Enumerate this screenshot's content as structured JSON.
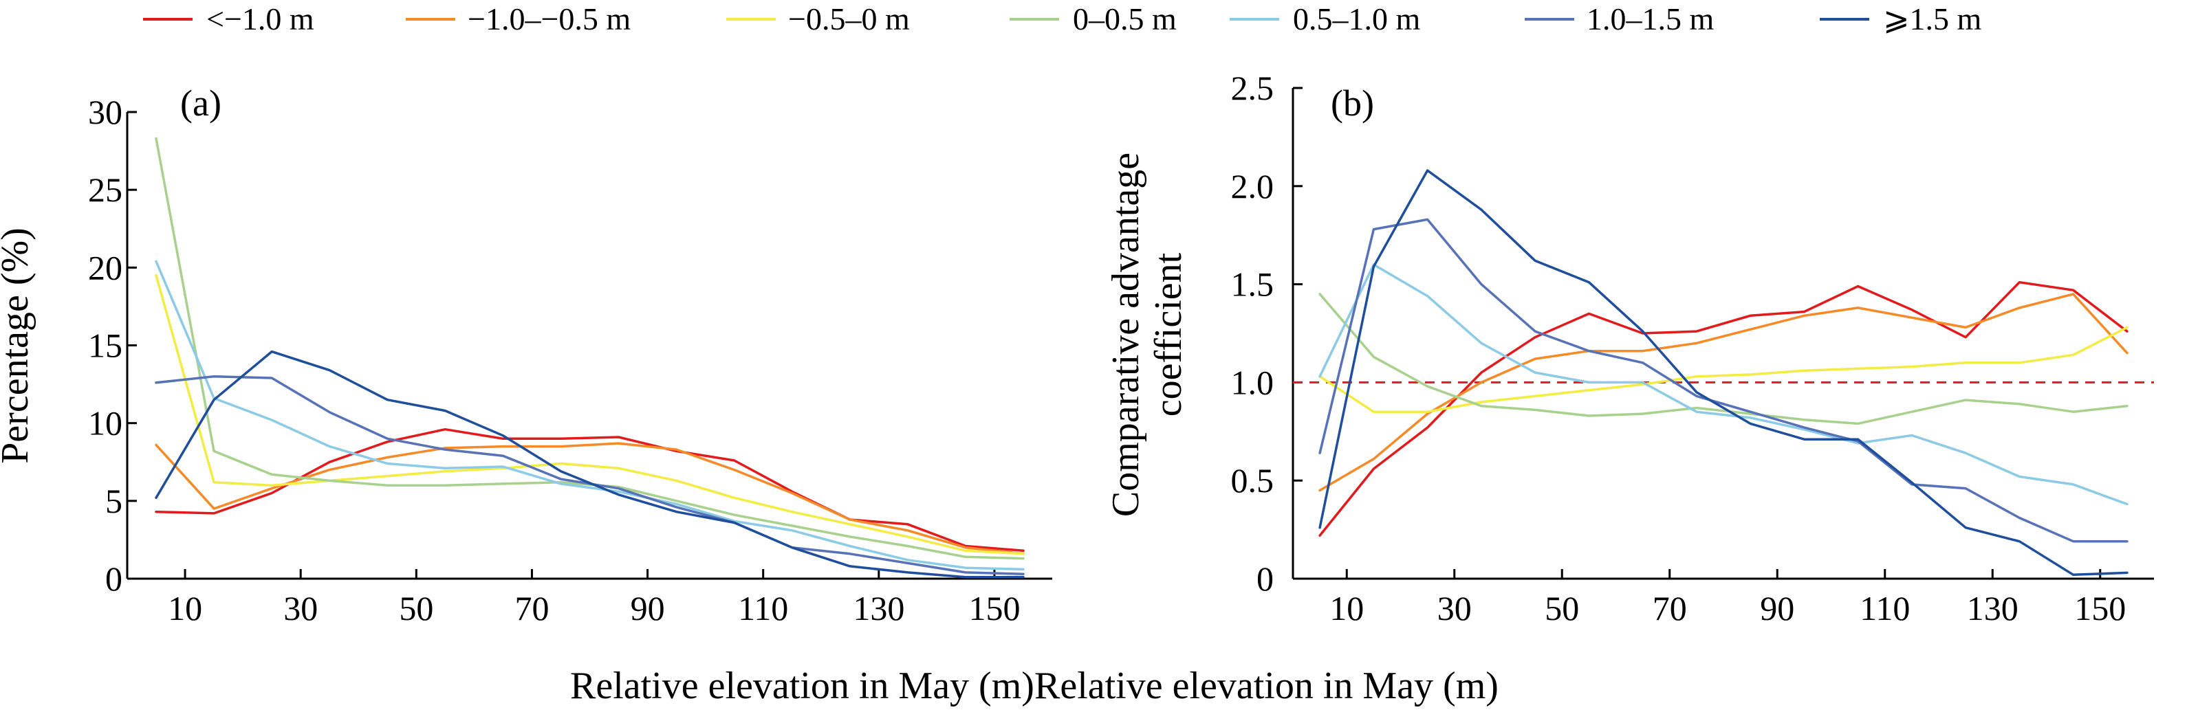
{
  "legend": [
    {
      "label": "<−1.0 m",
      "color": "#e31a1c"
    },
    {
      "label": "−1.0–−0.5 m",
      "color": "#f58a29"
    },
    {
      "label": "−0.5–0 m",
      "color": "#f2ec45"
    },
    {
      "label": "0–0.5 m",
      "color": "#a9d18e"
    },
    {
      "label": "0.5–1.0 m",
      "color": "#8ccbe6"
    },
    {
      "label": "1.0–1.5 m",
      "color": "#5872b8"
    },
    {
      "label": "⩾1.5 m",
      "color": "#1f4e9c"
    }
  ],
  "chart_data": [
    {
      "type": "line",
      "panel_label": "(a)",
      "xlabel": "Relative elevation in May (m)",
      "ylabel": "Percentage (%)",
      "xlim": [
        0,
        160
      ],
      "ylim": [
        0,
        30
      ],
      "xticks": [
        10,
        30,
        50,
        70,
        90,
        110,
        130,
        150
      ],
      "yticks": [
        0,
        5,
        10,
        15,
        20,
        25,
        30
      ],
      "ytick_labels": [
        "0",
        "5",
        "10",
        "15",
        "20",
        "25",
        "30"
      ],
      "x": [
        5,
        15,
        25,
        35,
        45,
        55,
        65,
        75,
        85,
        95,
        105,
        115,
        125,
        135,
        145,
        155
      ],
      "series": [
        {
          "name": "<−1.0 m",
          "color": "#e31a1c",
          "values": [
            4.3,
            4.2,
            5.5,
            7.5,
            8.8,
            9.6,
            9.0,
            9.0,
            9.1,
            8.2,
            7.6,
            5.6,
            3.8,
            3.5,
            2.1,
            1.8
          ]
        },
        {
          "name": "−1.0–−0.5 m",
          "color": "#f58a29",
          "values": [
            8.6,
            4.5,
            5.8,
            7.0,
            7.8,
            8.4,
            8.5,
            8.5,
            8.7,
            8.3,
            7.0,
            5.5,
            3.8,
            3.1,
            2.0,
            1.6
          ]
        },
        {
          "name": "−0.5–0 m",
          "color": "#f2ec45",
          "values": [
            19.5,
            6.2,
            6.0,
            6.3,
            6.6,
            6.9,
            7.1,
            7.4,
            7.1,
            6.3,
            5.2,
            4.3,
            3.5,
            2.7,
            1.8,
            1.6
          ]
        },
        {
          "name": "0–0.5 m",
          "color": "#a9d18e",
          "values": [
            28.3,
            8.2,
            6.7,
            6.3,
            6.0,
            6.0,
            6.1,
            6.2,
            5.9,
            5.0,
            4.1,
            3.4,
            2.7,
            2.1,
            1.4,
            1.3
          ]
        },
        {
          "name": "0.5–1.0 m",
          "color": "#8ccbe6",
          "values": [
            20.4,
            11.6,
            10.2,
            8.5,
            7.4,
            7.1,
            7.2,
            6.1,
            5.6,
            4.8,
            3.7,
            3.1,
            2.1,
            1.2,
            0.7,
            0.6
          ]
        },
        {
          "name": "1.0–1.5 m",
          "color": "#5872b8",
          "values": [
            12.6,
            13.0,
            12.9,
            10.7,
            9.0,
            8.3,
            7.9,
            6.4,
            5.8,
            4.6,
            3.6,
            2.0,
            1.6,
            1.0,
            0.4,
            0.3
          ]
        },
        {
          "name": "⩾1.5 m",
          "color": "#1f4e9c",
          "values": [
            5.2,
            11.5,
            14.6,
            13.4,
            11.5,
            10.8,
            9.2,
            6.9,
            5.4,
            4.3,
            3.6,
            2.0,
            0.8,
            0.4,
            0.1,
            0.1
          ]
        }
      ]
    },
    {
      "type": "line",
      "panel_label": "(b)",
      "xlabel": "Relative elevation in May (m)",
      "ylabel_lines": [
        "Comparative advantage",
        "coefficient"
      ],
      "xlim": [
        0,
        160
      ],
      "ylim": [
        0,
        2.5
      ],
      "xticks": [
        10,
        30,
        50,
        70,
        90,
        110,
        130,
        150
      ],
      "yticks": [
        0,
        0.5,
        1.0,
        1.5,
        2.0,
        2.5
      ],
      "ytick_labels": [
        "0",
        "0.5",
        "1.0",
        "1.5",
        "2.0",
        "2.5"
      ],
      "reference_line": {
        "y": 1.0,
        "color": "#e31a1c",
        "style": "dashed"
      },
      "x": [
        5,
        15,
        25,
        35,
        45,
        55,
        65,
        75,
        85,
        95,
        105,
        115,
        125,
        135,
        145,
        155
      ],
      "series": [
        {
          "name": "<−1.0 m",
          "color": "#e31a1c",
          "values": [
            0.22,
            0.56,
            0.77,
            1.05,
            1.23,
            1.35,
            1.25,
            1.26,
            1.34,
            1.36,
            1.49,
            1.37,
            1.23,
            1.51,
            1.47,
            1.26
          ]
        },
        {
          "name": "−1.0–−0.5 m",
          "color": "#f58a29",
          "values": [
            0.45,
            0.61,
            0.84,
            1.0,
            1.12,
            1.16,
            1.16,
            1.2,
            1.27,
            1.34,
            1.38,
            1.33,
            1.28,
            1.38,
            1.45,
            1.15
          ]
        },
        {
          "name": "−0.5–0 m",
          "color": "#f2ec45",
          "values": [
            1.03,
            0.85,
            0.85,
            0.9,
            0.93,
            0.96,
            0.99,
            1.03,
            1.04,
            1.06,
            1.07,
            1.08,
            1.1,
            1.1,
            1.14,
            1.28
          ]
        },
        {
          "name": "0–0.5 m",
          "color": "#a9d18e",
          "values": [
            1.45,
            1.13,
            0.98,
            0.88,
            0.86,
            0.83,
            0.84,
            0.87,
            0.84,
            0.81,
            0.79,
            0.85,
            0.91,
            0.89,
            0.85,
            0.88
          ]
        },
        {
          "name": "0.5–1.0 m",
          "color": "#8ccbe6",
          "values": [
            1.03,
            1.6,
            1.44,
            1.2,
            1.05,
            1.0,
            1.0,
            0.85,
            0.82,
            0.76,
            0.69,
            0.73,
            0.64,
            0.52,
            0.48,
            0.38
          ]
        },
        {
          "name": "1.0–1.5 m",
          "color": "#5872b8",
          "values": [
            0.64,
            1.78,
            1.83,
            1.5,
            1.26,
            1.16,
            1.1,
            0.93,
            0.85,
            0.77,
            0.7,
            0.48,
            0.46,
            0.31,
            0.19,
            0.19
          ]
        },
        {
          "name": "⩾1.5 m",
          "color": "#1f4e9c",
          "values": [
            0.26,
            1.59,
            2.08,
            1.88,
            1.62,
            1.51,
            1.26,
            0.95,
            0.79,
            0.71,
            0.71,
            0.49,
            0.26,
            0.19,
            0.02,
            0.03
          ]
        }
      ]
    }
  ]
}
